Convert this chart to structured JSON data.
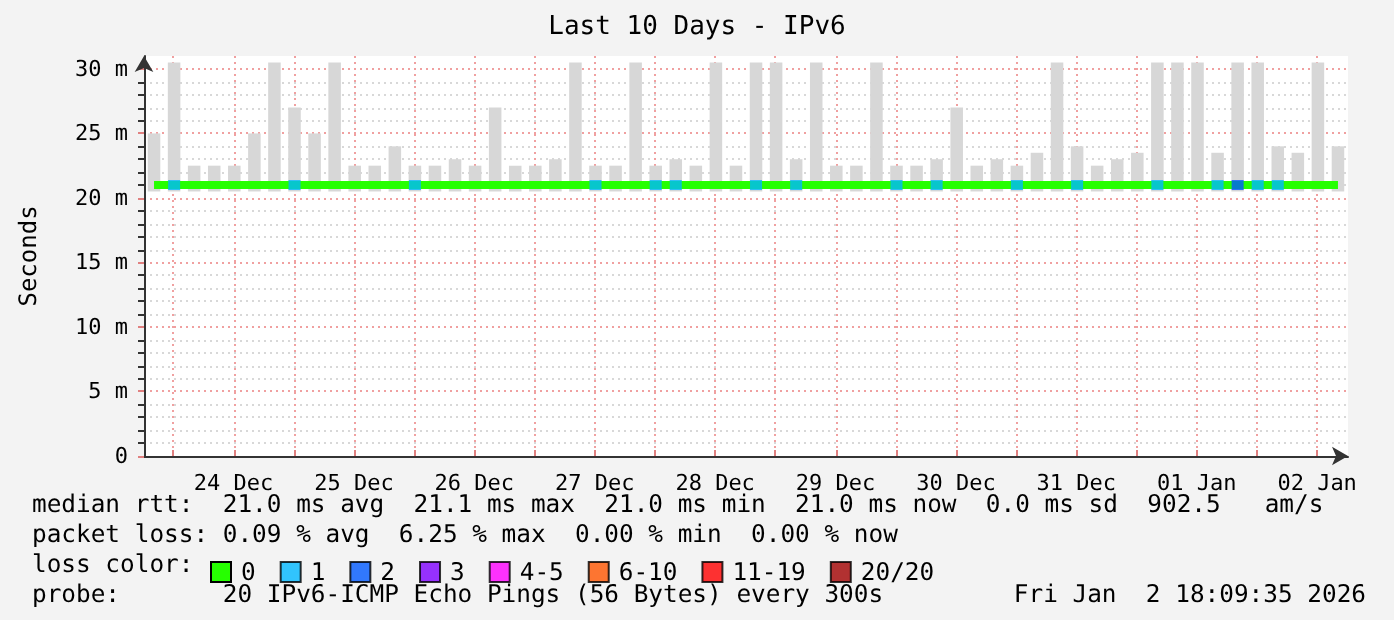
{
  "chart_data": {
    "type": "bar",
    "title": "Last 10 Days - IPv6",
    "ylabel": "Seconds",
    "x": [
      "2025-12-23T20:09",
      "2025-12-24T00:09",
      "2025-12-24T04:09",
      "2025-12-24T08:09",
      "2025-12-24T12:09",
      "2025-12-24T16:09",
      "2025-12-24T20:09",
      "2025-12-25T00:09",
      "2025-12-25T04:09",
      "2025-12-25T08:09",
      "2025-12-25T12:09",
      "2025-12-25T16:09",
      "2025-12-25T20:09",
      "2025-12-26T00:09",
      "2025-12-26T04:09",
      "2025-12-26T08:09",
      "2025-12-26T12:09",
      "2025-12-26T16:09",
      "2025-12-26T20:09",
      "2025-12-27T00:09",
      "2025-12-27T04:09",
      "2025-12-27T08:09",
      "2025-12-27T12:09",
      "2025-12-27T16:09",
      "2025-12-27T20:09",
      "2025-12-28T00:09",
      "2025-12-28T04:09",
      "2025-12-28T08:09",
      "2025-12-28T12:09",
      "2025-12-28T16:09",
      "2025-12-28T20:09",
      "2025-12-29T00:09",
      "2025-12-29T04:09",
      "2025-12-29T08:09",
      "2025-12-29T12:09",
      "2025-12-29T16:09",
      "2025-12-29T20:09",
      "2025-12-30T00:09",
      "2025-12-30T04:09",
      "2025-12-30T08:09",
      "2025-12-30T12:09",
      "2025-12-30T16:09",
      "2025-12-30T20:09",
      "2025-12-31T00:09",
      "2025-12-31T04:09",
      "2025-12-31T08:09",
      "2025-12-31T12:09",
      "2025-12-31T16:09",
      "2025-12-31T20:09",
      "2026-01-01T00:09",
      "2026-01-01T04:09",
      "2026-01-01T08:09",
      "2026-01-01T12:09",
      "2026-01-01T16:09",
      "2026-01-01T20:09",
      "2026-01-02T00:09",
      "2026-01-02T04:09",
      "2026-01-02T08:09",
      "2026-01-02T12:09",
      "2026-01-02T16:09"
    ],
    "series": [
      {
        "color": "#d7d7d7",
        "base": [
          20.5,
          20.5,
          20.5,
          20.5,
          20.5,
          20.5,
          20.5,
          20.5,
          20.5,
          20.5,
          20.5,
          20.5,
          20.5,
          20.5,
          20.5,
          20.5,
          20.5,
          20.5,
          20.5,
          20.5,
          20.5,
          20.5,
          20.5,
          20.5,
          20.5,
          20.5,
          20.5,
          20.5,
          20.5,
          20.5,
          20.5,
          20.5,
          20.5,
          20.5,
          20.5,
          20.5,
          20.5,
          20.5,
          20.5,
          20.5,
          20.5,
          20.5,
          20.5,
          20.5,
          20.5,
          20.5,
          20.5,
          20.5,
          20.5,
          20.5,
          20.5,
          20.5,
          20.5,
          20.5,
          20.5,
          20.5,
          20.5,
          20.5,
          20.5,
          20.5
        ],
        "values": [
          4.5,
          10,
          2,
          2,
          2,
          4.5,
          10,
          6.5,
          4.5,
          10,
          2,
          2,
          3.5,
          2,
          2,
          2.5,
          2,
          6.5,
          2,
          2,
          2.5,
          10,
          2,
          2,
          10,
          2,
          2.5,
          2,
          10,
          2,
          10,
          10,
          2.5,
          10,
          2,
          2,
          10,
          2,
          2,
          2.5,
          6.5,
          2,
          2.5,
          2,
          3,
          10,
          3.5,
          2,
          2.5,
          3,
          10,
          10,
          10,
          3,
          10,
          10,
          3.5,
          3,
          10,
          3.5
        ]
      },
      {
        "type": "line",
        "name": "0",
        "color": "#26ff00",
        "values": [
          21,
          21,
          21,
          21,
          21,
          21,
          21,
          21,
          21,
          21,
          21,
          21,
          21,
          21,
          21,
          21,
          21,
          21,
          21,
          21,
          21,
          21,
          21,
          21,
          21,
          21,
          21,
          21,
          21,
          21,
          21,
          21,
          21,
          21,
          21,
          21,
          21,
          21,
          21,
          21,
          21,
          21,
          21,
          21,
          21,
          21,
          21,
          21,
          21,
          21,
          21,
          21,
          21,
          21,
          21,
          21,
          21,
          21,
          21,
          21
        ]
      },
      {
        "type": "scatter",
        "name": "1",
        "color": "#00b8ff",
        "marker": "square",
        "values": [
          null,
          21,
          null,
          null,
          null,
          null,
          null,
          21,
          null,
          null,
          null,
          null,
          null,
          21,
          null,
          null,
          null,
          null,
          null,
          null,
          null,
          null,
          21,
          null,
          null,
          21,
          21,
          null,
          null,
          null,
          21,
          null,
          21,
          null,
          null,
          null,
          null,
          21,
          null,
          21,
          null,
          null,
          null,
          21,
          null,
          null,
          21,
          null,
          null,
          null,
          21,
          null,
          null,
          21,
          null,
          21,
          21,
          null,
          null,
          null
        ]
      },
      {
        "type": "scatter",
        "name": "2",
        "color": "#0059ff",
        "marker": "square",
        "values": [
          null,
          null,
          null,
          null,
          null,
          null,
          null,
          null,
          null,
          null,
          null,
          null,
          null,
          null,
          null,
          null,
          null,
          null,
          null,
          null,
          null,
          null,
          null,
          null,
          null,
          null,
          null,
          null,
          null,
          null,
          null,
          null,
          null,
          null,
          null,
          null,
          null,
          null,
          null,
          null,
          null,
          null,
          null,
          null,
          null,
          null,
          null,
          null,
          null,
          null,
          null,
          null,
          null,
          null,
          21,
          null,
          null,
          null,
          null,
          null
        ]
      },
      {
        "type": "scatter",
        "name": "3",
        "color": "#7e00ff",
        "marker": "square",
        "values": [
          null,
          null,
          null,
          null,
          null,
          null,
          null,
          null,
          null,
          null,
          null,
          null,
          null,
          null,
          null,
          null,
          null,
          null,
          null,
          null,
          null,
          null,
          null,
          null,
          null,
          null,
          null,
          null,
          null,
          null,
          null,
          null,
          null,
          null,
          null,
          null,
          null,
          null,
          null,
          null,
          null,
          null,
          null,
          null,
          null,
          null,
          null,
          null,
          null,
          null,
          null,
          null,
          null,
          null,
          null,
          null,
          null,
          null,
          null,
          null
        ]
      },
      {
        "type": "scatter",
        "name": "4-5",
        "color": "#ff00ff",
        "marker": "square",
        "values": [
          null,
          null,
          null,
          null,
          null,
          null,
          null,
          null,
          null,
          null,
          null,
          null,
          null,
          null,
          null,
          null,
          null,
          null,
          null,
          null,
          null,
          null,
          null,
          null,
          null,
          null,
          null,
          null,
          null,
          null,
          null,
          null,
          null,
          null,
          null,
          null,
          null,
          null,
          null,
          null,
          null,
          null,
          null,
          null,
          null,
          null,
          null,
          null,
          null,
          null,
          null,
          null,
          null,
          null,
          null,
          null,
          null,
          null,
          null,
          null
        ]
      },
      {
        "type": "scatter",
        "name": "6-10",
        "color": "#ff5500",
        "marker": "square",
        "values": [
          null,
          null,
          null,
          null,
          null,
          null,
          null,
          null,
          null,
          null,
          null,
          null,
          null,
          null,
          null,
          null,
          null,
          null,
          null,
          null,
          null,
          null,
          null,
          null,
          null,
          null,
          null,
          null,
          null,
          null,
          null,
          null,
          null,
          null,
          null,
          null,
          null,
          null,
          null,
          null,
          null,
          null,
          null,
          null,
          null,
          null,
          null,
          null,
          null,
          null,
          null,
          null,
          null,
          null,
          null,
          null,
          null,
          null,
          null,
          null
        ]
      },
      {
        "type": "scatter",
        "name": "11-19",
        "color": "#ff0000",
        "marker": "square",
        "values": [
          null,
          null,
          null,
          null,
          null,
          null,
          null,
          null,
          null,
          null,
          null,
          null,
          null,
          null,
          null,
          null,
          null,
          null,
          null,
          null,
          null,
          null,
          null,
          null,
          null,
          null,
          null,
          null,
          null,
          null,
          null,
          null,
          null,
          null,
          null,
          null,
          null,
          null,
          null,
          null,
          null,
          null,
          null,
          null,
          null,
          null,
          null,
          null,
          null,
          null,
          null,
          null,
          null,
          null,
          null,
          null,
          null,
          null,
          null,
          null
        ]
      },
      {
        "type": "scatter",
        "name": "20/20",
        "color": "#a10000",
        "marker": "square",
        "values": [
          null,
          null,
          null,
          null,
          null,
          null,
          null,
          null,
          null,
          null,
          null,
          null,
          null,
          null,
          null,
          null,
          null,
          null,
          null,
          null,
          null,
          null,
          null,
          null,
          null,
          null,
          null,
          null,
          null,
          null,
          null,
          null,
          null,
          null,
          null,
          null,
          null,
          null,
          null,
          null,
          null,
          null,
          null,
          null,
          null,
          null,
          null,
          null,
          null,
          null,
          null,
          null,
          null,
          null,
          null,
          null,
          null,
          null,
          null,
          null
        ]
      }
    ],
    "xlim": [
      "2025-12-23T18:09",
      "2026-01-02T18:09"
    ],
    "xticks": [
      {
        "value": "2025-12-24T00:00",
        "label": null
      },
      {
        "value": "2025-12-24T12:00",
        "label": "24 Dec"
      },
      {
        "value": "2025-12-25T00:00",
        "label": null
      },
      {
        "value": "2025-12-25T12:00",
        "label": "25 Dec"
      },
      {
        "value": "2025-12-26T00:00",
        "label": null
      },
      {
        "value": "2025-12-26T12:00",
        "label": "26 Dec"
      },
      {
        "value": "2025-12-27T00:00",
        "label": null
      },
      {
        "value": "2025-12-27T12:00",
        "label": "27 Dec"
      },
      {
        "value": "2025-12-28T00:00",
        "label": null
      },
      {
        "value": "2025-12-28T12:00",
        "label": "28 Dec"
      },
      {
        "value": "2025-12-29T00:00",
        "label": null
      },
      {
        "value": "2025-12-29T12:00",
        "label": "29 Dec"
      },
      {
        "value": "2025-12-30T00:00",
        "label": null
      },
      {
        "value": "2025-12-30T12:00",
        "label": "30 Dec"
      },
      {
        "value": "2025-12-31T00:00",
        "label": null
      },
      {
        "value": "2025-12-31T12:00",
        "label": "31 Dec"
      },
      {
        "value": "2026-01-01T00:00",
        "label": null
      },
      {
        "value": "2026-01-01T12:00",
        "label": "01 Jan"
      },
      {
        "value": "2026-01-02T00:00",
        "label": null
      },
      {
        "value": "2026-01-02T12:00",
        "label": "02 Jan"
      }
    ],
    "ylim": [
      0,
      31
    ],
    "yticks": [
      0,
      {
        "value": 5,
        "label": "5 m"
      },
      {
        "value": 10,
        "label": "10 m"
      },
      {
        "value": 15,
        "label": "15 m"
      },
      {
        "value": 20,
        "label": "20 m"
      },
      {
        "value": 25,
        "label": "25 m"
      },
      {
        "value": 30,
        "label": "30 m"
      }
    ],
    "grid": true,
    "legend": "bottom",
    "annotations": [
      "median rtt:  21.0 ms avg  21.1 ms max  21.0 ms min  21.0 ms now  0.0 ms sd  902.5   am/s",
      "packet loss: 0.09 % avg  6.25 % max  0.00 % min  0.00 % now",
      "loss color:",
      "probe:       20 IPv6-ICMP Echo Pings (56 Bytes) every 300s",
      "Fri Jan  2 18:09:35 2026"
    ]
  }
}
